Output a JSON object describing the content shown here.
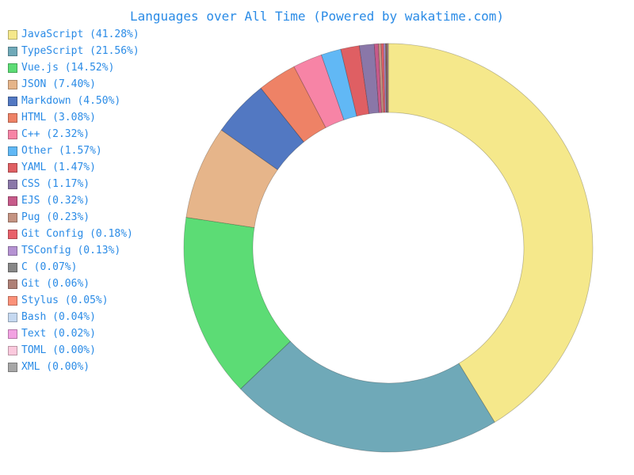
{
  "chart_data": {
    "type": "pie",
    "variant": "donut",
    "title": "Languages over All Time (Powered by wakatime.com)",
    "legend_position": "left",
    "slices": [
      {
        "label": "JavaScript (41.28%)",
        "name": "JavaScript",
        "value": 41.28,
        "color": "#f5e88b"
      },
      {
        "label": "TypeScript (21.56%)",
        "name": "TypeScript",
        "value": 21.56,
        "color": "#6fa9b8"
      },
      {
        "label": "Vue.js (14.52%)",
        "name": "Vue.js",
        "value": 14.52,
        "color": "#5cdc75"
      },
      {
        "label": "JSON (7.40%)",
        "name": "JSON",
        "value": 7.4,
        "color": "#e6b58a"
      },
      {
        "label": "Markdown (4.50%)",
        "name": "Markdown",
        "value": 4.5,
        "color": "#5278c2"
      },
      {
        "label": "HTML (3.08%)",
        "name": "HTML",
        "value": 3.08,
        "color": "#ee8266"
      },
      {
        "label": "C++ (2.32%)",
        "name": "C++",
        "value": 2.32,
        "color": "#f784a6"
      },
      {
        "label": "Other (1.57%)",
        "name": "Other",
        "value": 1.57,
        "color": "#61b8f5"
      },
      {
        "label": "YAML (1.47%)",
        "name": "YAML",
        "value": 1.47,
        "color": "#df5f63"
      },
      {
        "label": "CSS (1.17%)",
        "name": "CSS",
        "value": 1.17,
        "color": "#8a77a8"
      },
      {
        "label": "EJS (0.32%)",
        "name": "EJS",
        "value": 0.32,
        "color": "#c75a8a"
      },
      {
        "label": "Pug (0.23%)",
        "name": "Pug",
        "value": 0.23,
        "color": "#c49382"
      },
      {
        "label": "Git Config (0.18%)",
        "name": "Git Config",
        "value": 0.18,
        "color": "#e8606a"
      },
      {
        "label": "TSConfig (0.13%)",
        "name": "TSConfig",
        "value": 0.13,
        "color": "#b592d2"
      },
      {
        "label": "C (0.07%)",
        "name": "C",
        "value": 0.07,
        "color": "#878787"
      },
      {
        "label": "Git (0.06%)",
        "name": "Git",
        "value": 0.06,
        "color": "#ae8076"
      },
      {
        "label": "Stylus (0.05%)",
        "name": "Stylus",
        "value": 0.05,
        "color": "#fb9179"
      },
      {
        "label": "Bash (0.04%)",
        "name": "Bash",
        "value": 0.04,
        "color": "#c5d8f0"
      },
      {
        "label": "Text (0.02%)",
        "name": "Text",
        "value": 0.02,
        "color": "#f2a2e2"
      },
      {
        "label": "TOML (0.00%)",
        "name": "TOML",
        "value": 0.0,
        "color": "#fbc9dd"
      },
      {
        "label": "XML (0.00%)",
        "name": "XML",
        "value": 0.0,
        "color": "#a6a6a6"
      }
    ]
  }
}
